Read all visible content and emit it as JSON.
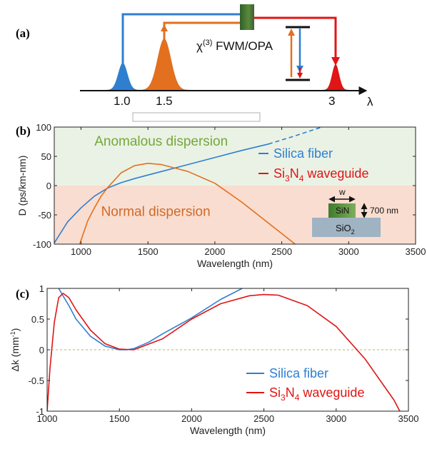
{
  "colors": {
    "blue": "#2f7fd0",
    "orange": "#e2701f",
    "red": "#e01515",
    "green_text": "#74a83a",
    "orange_text": "#d06a28",
    "anomalous_bg": "#eaf2e5",
    "normal_bg": "#f9ddd0",
    "grid_zero": "#b8b46a",
    "sin_green": "#4f8a35",
    "sio2_gray": "#9fb3c3"
  },
  "panel_a": {
    "label": "(a)",
    "process_label": "χ(3) FWM/OPA",
    "chi_symbol": "χ",
    "chi_superscript": "(3)",
    "process_text": " FWM/OPA",
    "axis_symbol": "λ",
    "peaks": [
      {
        "label": "1.0",
        "color": "blue"
      },
      {
        "label": "1.5",
        "color": "orange"
      },
      {
        "label": "3",
        "color": "red"
      }
    ]
  },
  "chart_data": [
    {
      "type": "line",
      "panel_label": "(b)",
      "xlabel": "Wavelength (nm)",
      "ylabel": "D (ps/km-nm)",
      "xlim": [
        800,
        3500
      ],
      "ylim": [
        -100,
        100
      ],
      "xticks": [
        1000,
        1500,
        2000,
        2500,
        3000,
        3500
      ],
      "yticks": [
        100,
        50,
        0,
        -50,
        -100
      ],
      "regions": [
        {
          "label": "Anomalous dispersion",
          "range": [
            0,
            100
          ],
          "color": "anomalous_bg"
        },
        {
          "label": "Normal dispersion",
          "range": [
            -100,
            0
          ],
          "color": "normal_bg"
        }
      ],
      "series": [
        {
          "name": "Silica fiber",
          "color": "blue",
          "x": [
            800,
            900,
            1000,
            1100,
            1200,
            1300,
            1400,
            1500,
            1600,
            1800,
            2000,
            2200,
            2400
          ],
          "y": [
            -98,
            -62,
            -38,
            -18,
            -4,
            5,
            12,
            18,
            24,
            36,
            48,
            60,
            71
          ],
          "extrapolated": {
            "x": [
              2400,
              2600,
              2800
            ],
            "y": [
              71,
              85,
              100
            ]
          }
        },
        {
          "name": "Si3N4 waveguide",
          "color": "orange",
          "x": [
            990,
            1050,
            1100,
            1150,
            1200,
            1300,
            1400,
            1500,
            1600,
            1800,
            2000,
            2200,
            2400,
            2600
          ],
          "y": [
            -100,
            -60,
            -38,
            -18,
            -3,
            22,
            34,
            38,
            36,
            24,
            4,
            -28,
            -64,
            -100
          ]
        }
      ],
      "legend": [
        {
          "name": "Silica fiber",
          "color": "blue",
          "text": "Silica fiber"
        },
        {
          "name": "Si3N4 waveguide",
          "color": "red",
          "text_base": "Si",
          "sub1": "3",
          "mid": "N",
          "sub2": "4",
          "tail": " waveguide"
        }
      ],
      "inset": {
        "width_label": "w",
        "core_label": "SiN",
        "height_label": "700 nm",
        "substrate_base": "SiO",
        "substrate_sub": "2"
      }
    },
    {
      "type": "line",
      "panel_label": "(c)",
      "xlabel": "Wavelength (nm)",
      "ylabel": "Δk (mm⁻¹)",
      "ylabel_base": "Δk (mm",
      "ylabel_sup": "-1",
      "ylabel_tail": ")",
      "xlim": [
        1000,
        3500
      ],
      "ylim": [
        -1,
        1
      ],
      "xticks": [
        1000,
        1500,
        2000,
        2500,
        3000,
        3500
      ],
      "yticks": [
        1,
        0.5,
        0,
        -0.5,
        -1
      ],
      "series": [
        {
          "name": "Silica fiber",
          "color": "blue",
          "x": [
            1080,
            1100,
            1150,
            1200,
            1300,
            1400,
            1500,
            1550,
            1600,
            1700,
            1800,
            2000,
            2200,
            2350
          ],
          "y": [
            1.0,
            0.92,
            0.72,
            0.5,
            0.22,
            0.06,
            0.0,
            0.0,
            0.02,
            0.12,
            0.26,
            0.52,
            0.82,
            1.0
          ]
        },
        {
          "name": "Si3N4 waveguide",
          "color": "red",
          "x": [
            1000,
            1020,
            1050,
            1080,
            1110,
            1150,
            1200,
            1300,
            1400,
            1500,
            1600,
            1800,
            2000,
            2200,
            2400,
            2500,
            2600,
            2800,
            3000,
            3200,
            3400,
            3440
          ],
          "y": [
            -1.0,
            -0.3,
            0.45,
            0.85,
            0.92,
            0.85,
            0.65,
            0.32,
            0.1,
            0.01,
            0.0,
            0.18,
            0.5,
            0.75,
            0.88,
            0.9,
            0.89,
            0.72,
            0.38,
            -0.15,
            -0.82,
            -1.0
          ]
        }
      ],
      "legend": [
        {
          "name": "Silica fiber",
          "color": "blue",
          "text": "Silica fiber"
        },
        {
          "name": "Si3N4 waveguide",
          "color": "red",
          "text_base": "Si",
          "sub1": "3",
          "mid": "N",
          "sub2": "4",
          "tail": " waveguide"
        }
      ]
    }
  ]
}
